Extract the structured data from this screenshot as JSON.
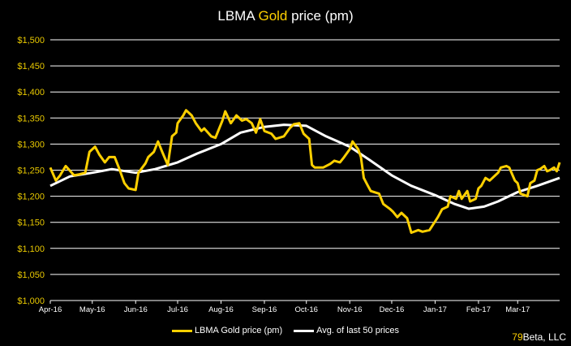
{
  "title": {
    "prefix": "LBMA ",
    "highlight": "Gold",
    "suffix": " price (pm)"
  },
  "credit": {
    "number": "79",
    "text": "Beta, LLC"
  },
  "colors": {
    "gold": "#FFD000",
    "average": "#FFFFFF",
    "axis_labels": "#E8C800",
    "background": "#000000"
  },
  "chart_data": {
    "type": "line",
    "title": "LBMA Gold price (pm)",
    "ylim": [
      1000,
      1500
    ],
    "yticks": [
      1000,
      1050,
      1100,
      1150,
      1200,
      1250,
      1300,
      1350,
      1400,
      1450,
      1500
    ],
    "ytick_labels": [
      "$1,000",
      "$1,050",
      "$1,100",
      "$1,150",
      "$1,200",
      "$1,250",
      "$1,300",
      "$1,350",
      "$1,400",
      "$1,450",
      "$1,500"
    ],
    "xlim": [
      "2016-04-01",
      "2017-03-31"
    ],
    "xticks": [
      "2016-04-01",
      "2016-05-01",
      "2016-06-01",
      "2016-07-01",
      "2016-08-01",
      "2016-09-01",
      "2016-10-01",
      "2016-11-01",
      "2016-12-01",
      "2017-01-01",
      "2017-02-01",
      "2017-03-01"
    ],
    "xtick_labels": [
      "Apr-16",
      "May-16",
      "Jun-16",
      "Jul-16",
      "Aug-16",
      "Sep-16",
      "Oct-16",
      "Nov-16",
      "Dec-16",
      "Jan-17",
      "Feb-17",
      "Mar-17"
    ],
    "grid": "horizontal",
    "legend": "bottom",
    "series": [
      {
        "name": "LBMA Gold price (pm)",
        "points": [
          [
            "2016-04-01",
            1255
          ],
          [
            "2016-04-05",
            1230
          ],
          [
            "2016-04-08",
            1240
          ],
          [
            "2016-04-12",
            1258
          ],
          [
            "2016-04-18",
            1240
          ],
          [
            "2016-04-22",
            1242
          ],
          [
            "2016-04-26",
            1245
          ],
          [
            "2016-04-29",
            1285
          ],
          [
            "2016-05-03",
            1295
          ],
          [
            "2016-05-06",
            1280
          ],
          [
            "2016-05-10",
            1265
          ],
          [
            "2016-05-13",
            1275
          ],
          [
            "2016-05-17",
            1275
          ],
          [
            "2016-05-20",
            1255
          ],
          [
            "2016-05-24",
            1225
          ],
          [
            "2016-05-27",
            1215
          ],
          [
            "2016-06-01",
            1212
          ],
          [
            "2016-06-03",
            1245
          ],
          [
            "2016-06-08",
            1263
          ],
          [
            "2016-06-10",
            1275
          ],
          [
            "2016-06-14",
            1285
          ],
          [
            "2016-06-17",
            1305
          ],
          [
            "2016-06-20",
            1285
          ],
          [
            "2016-06-24",
            1260
          ],
          [
            "2016-06-27",
            1315
          ],
          [
            "2016-06-30",
            1322
          ],
          [
            "2016-07-01",
            1340
          ],
          [
            "2016-07-05",
            1355
          ],
          [
            "2016-07-07",
            1365
          ],
          [
            "2016-07-11",
            1355
          ],
          [
            "2016-07-14",
            1340
          ],
          [
            "2016-07-18",
            1325
          ],
          [
            "2016-07-20",
            1330
          ],
          [
            "2016-07-25",
            1315
          ],
          [
            "2016-07-28",
            1312
          ],
          [
            "2016-08-02",
            1345
          ],
          [
            "2016-08-04",
            1363
          ],
          [
            "2016-08-08",
            1340
          ],
          [
            "2016-08-12",
            1355
          ],
          [
            "2016-08-16",
            1345
          ],
          [
            "2016-08-19",
            1348
          ],
          [
            "2016-08-23",
            1340
          ],
          [
            "2016-08-26",
            1322
          ],
          [
            "2016-08-29",
            1348
          ],
          [
            "2016-09-01",
            1325
          ],
          [
            "2016-09-06",
            1320
          ],
          [
            "2016-09-09",
            1310
          ],
          [
            "2016-09-15",
            1315
          ],
          [
            "2016-09-19",
            1330
          ],
          [
            "2016-09-22",
            1338
          ],
          [
            "2016-09-26",
            1340
          ],
          [
            "2016-09-29",
            1320
          ],
          [
            "2016-10-03",
            1310
          ],
          [
            "2016-10-05",
            1260
          ],
          [
            "2016-10-07",
            1255
          ],
          [
            "2016-10-13",
            1255
          ],
          [
            "2016-10-18",
            1262
          ],
          [
            "2016-10-21",
            1268
          ],
          [
            "2016-10-25",
            1265
          ],
          [
            "2016-10-28",
            1275
          ],
          [
            "2016-11-01",
            1290
          ],
          [
            "2016-11-03",
            1305
          ],
          [
            "2016-11-07",
            1290
          ],
          [
            "2016-11-09",
            1275
          ],
          [
            "2016-11-11",
            1235
          ],
          [
            "2016-11-14",
            1220
          ],
          [
            "2016-11-16",
            1210
          ],
          [
            "2016-11-22",
            1205
          ],
          [
            "2016-11-25",
            1185
          ],
          [
            "2016-11-30",
            1175
          ],
          [
            "2016-12-02",
            1170
          ],
          [
            "2016-12-05",
            1160
          ],
          [
            "2016-12-08",
            1168
          ],
          [
            "2016-12-12",
            1158
          ],
          [
            "2016-12-15",
            1130
          ],
          [
            "2016-12-20",
            1135
          ],
          [
            "2016-12-23",
            1132
          ],
          [
            "2016-12-28",
            1135
          ],
          [
            "2017-01-03",
            1160
          ],
          [
            "2017-01-06",
            1175
          ],
          [
            "2017-01-10",
            1180
          ],
          [
            "2017-01-12",
            1200
          ],
          [
            "2017-01-16",
            1195
          ],
          [
            "2017-01-18",
            1210
          ],
          [
            "2017-01-20",
            1195
          ],
          [
            "2017-01-24",
            1210
          ],
          [
            "2017-01-26",
            1190
          ],
          [
            "2017-01-30",
            1195
          ],
          [
            "2017-02-01",
            1215
          ],
          [
            "2017-02-03",
            1220
          ],
          [
            "2017-02-06",
            1235
          ],
          [
            "2017-02-09",
            1230
          ],
          [
            "2017-02-13",
            1240
          ],
          [
            "2017-02-15",
            1245
          ],
          [
            "2017-02-17",
            1255
          ],
          [
            "2017-02-21",
            1258
          ],
          [
            "2017-02-23",
            1255
          ],
          [
            "2017-02-27",
            1230
          ],
          [
            "2017-03-01",
            1225
          ],
          [
            "2017-03-03",
            1205
          ],
          [
            "2017-03-06",
            1202
          ],
          [
            "2017-03-08",
            1200
          ],
          [
            "2017-03-10",
            1225
          ],
          [
            "2017-03-13",
            1230
          ],
          [
            "2017-03-15",
            1250
          ],
          [
            "2017-03-17",
            1252
          ],
          [
            "2017-03-20",
            1258
          ],
          [
            "2017-03-22",
            1248
          ],
          [
            "2017-03-24",
            1250
          ],
          [
            "2017-03-27",
            1255
          ],
          [
            "2017-03-29",
            1248
          ],
          [
            "2017-03-31",
            1265
          ]
        ]
      },
      {
        "name": "Avg. of last 50 prices",
        "points": [
          [
            "2016-04-01",
            1220
          ],
          [
            "2016-04-15",
            1238
          ],
          [
            "2016-05-01",
            1245
          ],
          [
            "2016-05-15",
            1252
          ],
          [
            "2016-06-01",
            1245
          ],
          [
            "2016-06-15",
            1252
          ],
          [
            "2016-07-01",
            1265
          ],
          [
            "2016-07-15",
            1282
          ],
          [
            "2016-08-01",
            1300
          ],
          [
            "2016-08-15",
            1322
          ],
          [
            "2016-09-01",
            1333
          ],
          [
            "2016-09-15",
            1337
          ],
          [
            "2016-10-01",
            1335
          ],
          [
            "2016-10-15",
            1315
          ],
          [
            "2016-11-01",
            1295
          ],
          [
            "2016-11-15",
            1270
          ],
          [
            "2016-12-01",
            1240
          ],
          [
            "2016-12-15",
            1220
          ],
          [
            "2017-01-01",
            1202
          ],
          [
            "2017-01-15",
            1185
          ],
          [
            "2017-01-25",
            1176
          ],
          [
            "2017-02-05",
            1180
          ],
          [
            "2017-02-15",
            1190
          ],
          [
            "2017-03-01",
            1208
          ],
          [
            "2017-03-15",
            1220
          ],
          [
            "2017-03-31",
            1235
          ]
        ]
      }
    ]
  }
}
